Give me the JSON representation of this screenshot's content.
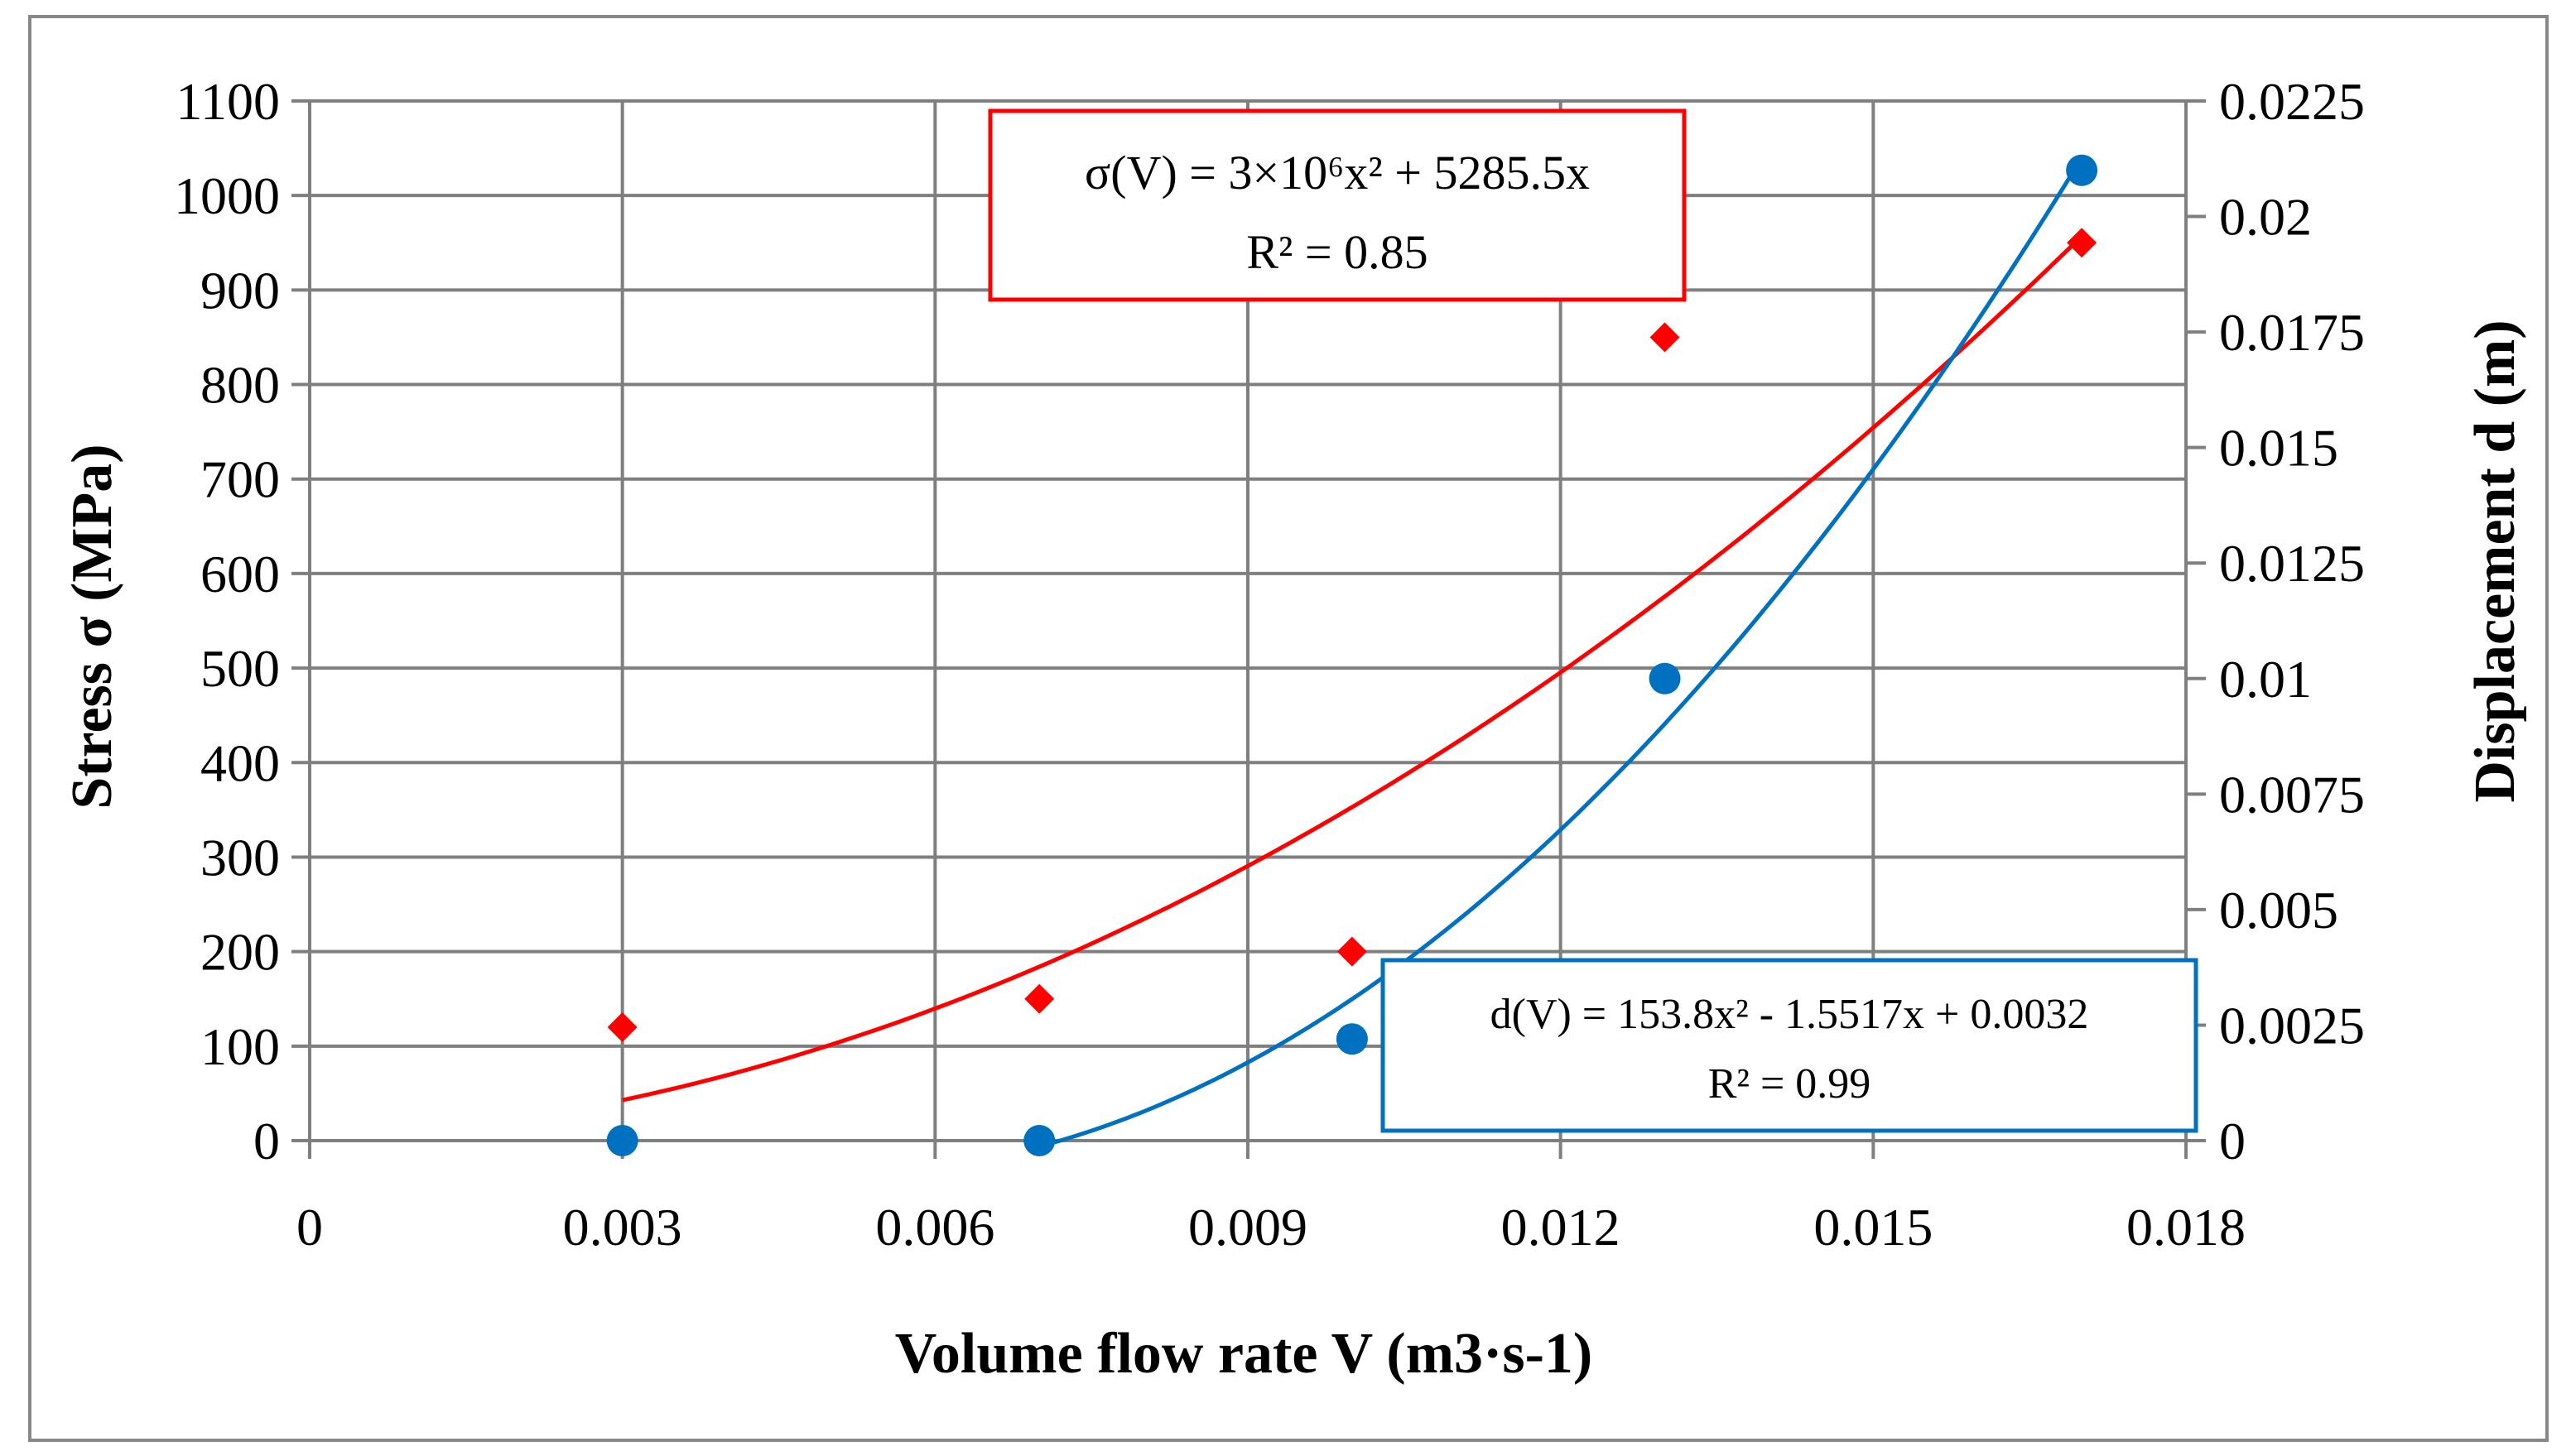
{
  "chart_data": {
    "type": "scatter",
    "x": [
      0.003,
      0.007,
      0.01,
      0.013,
      0.017
    ],
    "xlim": [
      0,
      0.018
    ],
    "xticks": [
      "0",
      "0.003",
      "0.006",
      "0.009",
      "0.012",
      "0.015",
      "0.018"
    ],
    "xlabel": "Volume flow rate V (m3·s-1)",
    "ylabel_left": "Stress σ (MPa)",
    "ylim_left": [
      0,
      1100
    ],
    "yticks_left": [
      "0",
      "100",
      "200",
      "300",
      "400",
      "500",
      "600",
      "700",
      "800",
      "900",
      "1000",
      "1100"
    ],
    "ylabel_right": "Displacement d (m)",
    "ylim_right": [
      0,
      0.0225
    ],
    "yticks_right": [
      "0",
      "0.0025",
      "0.005",
      "0.0075",
      "0.01",
      "0.0125",
      "0.015",
      "0.0175",
      "0.02",
      "0.0225"
    ],
    "grid": true,
    "series": [
      {
        "axis": "left",
        "marker": "diamond",
        "color": "#ff0000",
        "values": [
          120,
          150,
          200,
          850,
          950
        ],
        "trendline": {
          "coeffs": [
            3000000,
            5285.5,
            0
          ],
          "x_range": [
            0.003,
            0.017
          ],
          "equation": "σ(V) = 3×10⁶x² + 5285.5x",
          "r2": "R² = 0.85"
        }
      },
      {
        "axis": "right",
        "marker": "circle",
        "color": "#0070c0",
        "values": [
          0,
          0,
          0.0022,
          0.01,
          0.021
        ],
        "trendline": {
          "coeffs": [
            153.8,
            -1.5517,
            0.0032
          ],
          "x_range": [
            0.007,
            0.017
          ],
          "equation": "d(V) = 153.8x² - 1.5517x + 0.0032",
          "r2": "R² = 0.99"
        }
      }
    ]
  }
}
